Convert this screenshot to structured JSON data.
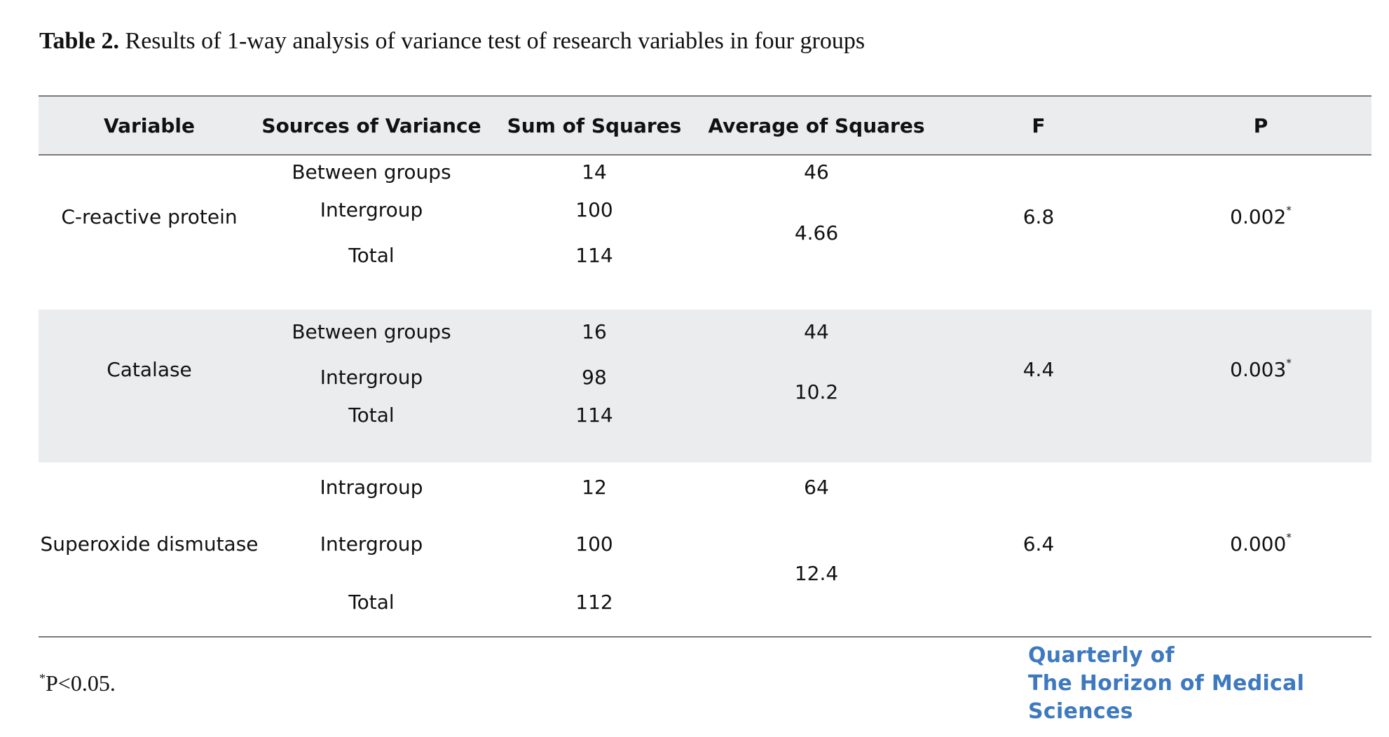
{
  "caption": {
    "label": "Table 2.",
    "text": "Results of 1-way analysis of variance test of research variables in four groups"
  },
  "table": {
    "headers": [
      "Variable",
      "Sources of Variance",
      "Sum of Squares",
      "Average of Squares",
      "F",
      "P"
    ],
    "groups": [
      {
        "variable": "C-reactive protein",
        "sources": [
          "Between groups",
          "Intergroup",
          "Total"
        ],
        "sums": [
          "14",
          "100",
          "114"
        ],
        "averages": [
          "46",
          "4.66"
        ],
        "f": "6.8",
        "p": "0.002",
        "p_mark": "*"
      },
      {
        "variable": "Catalase",
        "sources": [
          "Between groups",
          "Intergroup",
          "Total"
        ],
        "sums": [
          "16",
          "98",
          "114"
        ],
        "averages": [
          "44",
          "10.2"
        ],
        "f": "4.4",
        "p": "0.003",
        "p_mark": "*"
      },
      {
        "variable": "Superoxide dismutase",
        "sources": [
          "Intragroup",
          "Intergroup",
          "Total"
        ],
        "sums": [
          "12",
          "100",
          "112"
        ],
        "averages": [
          "64",
          "12.4"
        ],
        "f": "6.4",
        "p": "0.000",
        "p_mark": "*"
      }
    ]
  },
  "footnote": {
    "mark": "*",
    "text": "P<0.05."
  },
  "logo": {
    "line1": "Quarterly of",
    "line2": "The Horizon of Medical Sciences",
    "color": "#3e79bf"
  }
}
